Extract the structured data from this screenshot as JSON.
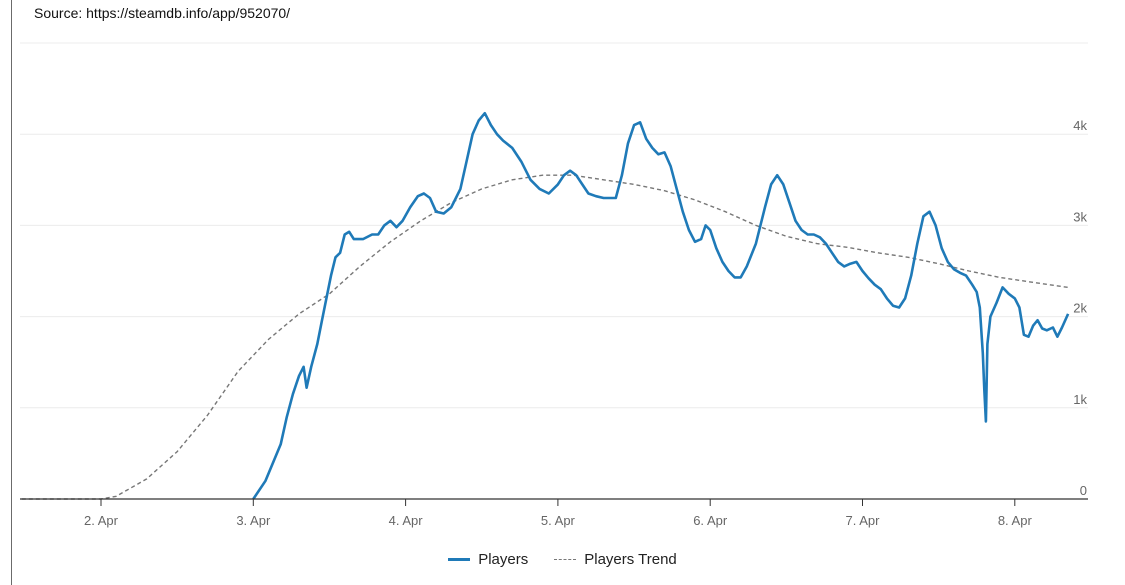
{
  "source_text": "Source: https://steamdb.info/app/952070/",
  "chart_data": {
    "type": "line",
    "x_ticks": [
      "2. Apr",
      "3. Apr",
      "4. Apr",
      "5. Apr",
      "6. Apr",
      "7. Apr",
      "8. Apr"
    ],
    "y_ticks": [
      "0",
      "1k",
      "2k",
      "3k",
      "4k"
    ],
    "ylim": [
      0,
      5000
    ],
    "grid": true,
    "legend_position": "bottom",
    "colors": {
      "players": "#1f7ab8",
      "trend": "#777777"
    },
    "series": [
      {
        "name": "Players",
        "style": "solid",
        "points": [
          [
            1.0,
            0
          ],
          [
            1.08,
            200
          ],
          [
            1.13,
            400
          ],
          [
            1.18,
            600
          ],
          [
            1.22,
            900
          ],
          [
            1.26,
            1150
          ],
          [
            1.3,
            1350
          ],
          [
            1.33,
            1450
          ],
          [
            1.35,
            1220
          ],
          [
            1.38,
            1450
          ],
          [
            1.42,
            1700
          ],
          [
            1.45,
            1950
          ],
          [
            1.48,
            2200
          ],
          [
            1.51,
            2450
          ],
          [
            1.54,
            2650
          ],
          [
            1.57,
            2700
          ],
          [
            1.6,
            2900
          ],
          [
            1.63,
            2930
          ],
          [
            1.66,
            2850
          ],
          [
            1.72,
            2850
          ],
          [
            1.78,
            2900
          ],
          [
            1.82,
            2900
          ],
          [
            1.86,
            3000
          ],
          [
            1.9,
            3050
          ],
          [
            1.94,
            2980
          ],
          [
            1.98,
            3050
          ],
          [
            2.03,
            3200
          ],
          [
            2.08,
            3320
          ],
          [
            2.12,
            3350
          ],
          [
            2.16,
            3300
          ],
          [
            2.2,
            3150
          ],
          [
            2.25,
            3130
          ],
          [
            2.3,
            3200
          ],
          [
            2.33,
            3300
          ],
          [
            2.36,
            3400
          ],
          [
            2.4,
            3700
          ],
          [
            2.44,
            4000
          ],
          [
            2.48,
            4150
          ],
          [
            2.52,
            4230
          ],
          [
            2.56,
            4100
          ],
          [
            2.6,
            4000
          ],
          [
            2.64,
            3930
          ],
          [
            2.7,
            3850
          ],
          [
            2.76,
            3700
          ],
          [
            2.82,
            3500
          ],
          [
            2.88,
            3400
          ],
          [
            2.94,
            3350
          ],
          [
            3.0,
            3450
          ],
          [
            3.04,
            3550
          ],
          [
            3.08,
            3600
          ],
          [
            3.12,
            3550
          ],
          [
            3.16,
            3450
          ],
          [
            3.2,
            3350
          ],
          [
            3.25,
            3320
          ],
          [
            3.3,
            3300
          ],
          [
            3.34,
            3300
          ],
          [
            3.38,
            3300
          ],
          [
            3.42,
            3550
          ],
          [
            3.46,
            3900
          ],
          [
            3.5,
            4100
          ],
          [
            3.54,
            4130
          ],
          [
            3.58,
            3950
          ],
          [
            3.62,
            3850
          ],
          [
            3.66,
            3780
          ],
          [
            3.7,
            3800
          ],
          [
            3.74,
            3650
          ],
          [
            3.78,
            3400
          ],
          [
            3.82,
            3150
          ],
          [
            3.86,
            2950
          ],
          [
            3.9,
            2820
          ],
          [
            3.94,
            2850
          ],
          [
            3.97,
            3000
          ],
          [
            4.0,
            2950
          ],
          [
            4.04,
            2750
          ],
          [
            4.08,
            2600
          ],
          [
            4.12,
            2500
          ],
          [
            4.16,
            2430
          ],
          [
            4.2,
            2430
          ],
          [
            4.24,
            2550
          ],
          [
            4.3,
            2800
          ],
          [
            4.36,
            3200
          ],
          [
            4.4,
            3450
          ],
          [
            4.44,
            3550
          ],
          [
            4.48,
            3450
          ],
          [
            4.52,
            3250
          ],
          [
            4.56,
            3050
          ],
          [
            4.6,
            2950
          ],
          [
            4.64,
            2900
          ],
          [
            4.68,
            2900
          ],
          [
            4.72,
            2870
          ],
          [
            4.76,
            2800
          ],
          [
            4.8,
            2700
          ],
          [
            4.84,
            2600
          ],
          [
            4.88,
            2550
          ],
          [
            4.92,
            2580
          ],
          [
            4.96,
            2600
          ],
          [
            5.0,
            2500
          ],
          [
            5.04,
            2420
          ],
          [
            5.08,
            2350
          ],
          [
            5.12,
            2300
          ],
          [
            5.16,
            2200
          ],
          [
            5.2,
            2120
          ],
          [
            5.24,
            2100
          ],
          [
            5.28,
            2200
          ],
          [
            5.32,
            2450
          ],
          [
            5.36,
            2800
          ],
          [
            5.4,
            3100
          ],
          [
            5.44,
            3150
          ],
          [
            5.48,
            3000
          ],
          [
            5.52,
            2750
          ],
          [
            5.56,
            2600
          ],
          [
            5.6,
            2520
          ],
          [
            5.64,
            2480
          ],
          [
            5.68,
            2450
          ],
          [
            5.72,
            2350
          ],
          [
            5.75,
            2270
          ],
          [
            5.77,
            2100
          ],
          [
            5.79,
            1600
          ],
          [
            5.8,
            1200
          ],
          [
            5.81,
            850
          ],
          [
            5.82,
            1700
          ],
          [
            5.84,
            2000
          ],
          [
            5.88,
            2150
          ],
          [
            5.92,
            2320
          ],
          [
            5.96,
            2250
          ],
          [
            6.0,
            2200
          ],
          [
            6.03,
            2100
          ],
          [
            6.06,
            1800
          ],
          [
            6.09,
            1780
          ],
          [
            6.12,
            1900
          ],
          [
            6.15,
            1960
          ],
          [
            6.18,
            1870
          ],
          [
            6.21,
            1850
          ],
          [
            6.25,
            1880
          ],
          [
            6.28,
            1780
          ],
          [
            6.31,
            1880
          ],
          [
            6.35,
            2030
          ]
        ]
      },
      {
        "name": "Players Trend",
        "style": "dashed",
        "points": [
          [
            -0.52,
            0
          ],
          [
            0.0,
            0
          ],
          [
            0.1,
            30
          ],
          [
            0.3,
            220
          ],
          [
            0.5,
            520
          ],
          [
            0.7,
            920
          ],
          [
            0.9,
            1400
          ],
          [
            1.1,
            1750
          ],
          [
            1.3,
            2030
          ],
          [
            1.5,
            2250
          ],
          [
            1.7,
            2550
          ],
          [
            1.9,
            2820
          ],
          [
            2.1,
            3050
          ],
          [
            2.3,
            3250
          ],
          [
            2.5,
            3400
          ],
          [
            2.7,
            3500
          ],
          [
            2.9,
            3550
          ],
          [
            3.1,
            3550
          ],
          [
            3.3,
            3500
          ],
          [
            3.5,
            3450
          ],
          [
            3.7,
            3380
          ],
          [
            3.9,
            3280
          ],
          [
            4.1,
            3150
          ],
          [
            4.3,
            3000
          ],
          [
            4.5,
            2880
          ],
          [
            4.7,
            2800
          ],
          [
            4.9,
            2760
          ],
          [
            5.1,
            2700
          ],
          [
            5.3,
            2650
          ],
          [
            5.5,
            2580
          ],
          [
            5.7,
            2500
          ],
          [
            5.9,
            2430
          ],
          [
            6.1,
            2380
          ],
          [
            6.35,
            2320
          ]
        ]
      }
    ]
  }
}
